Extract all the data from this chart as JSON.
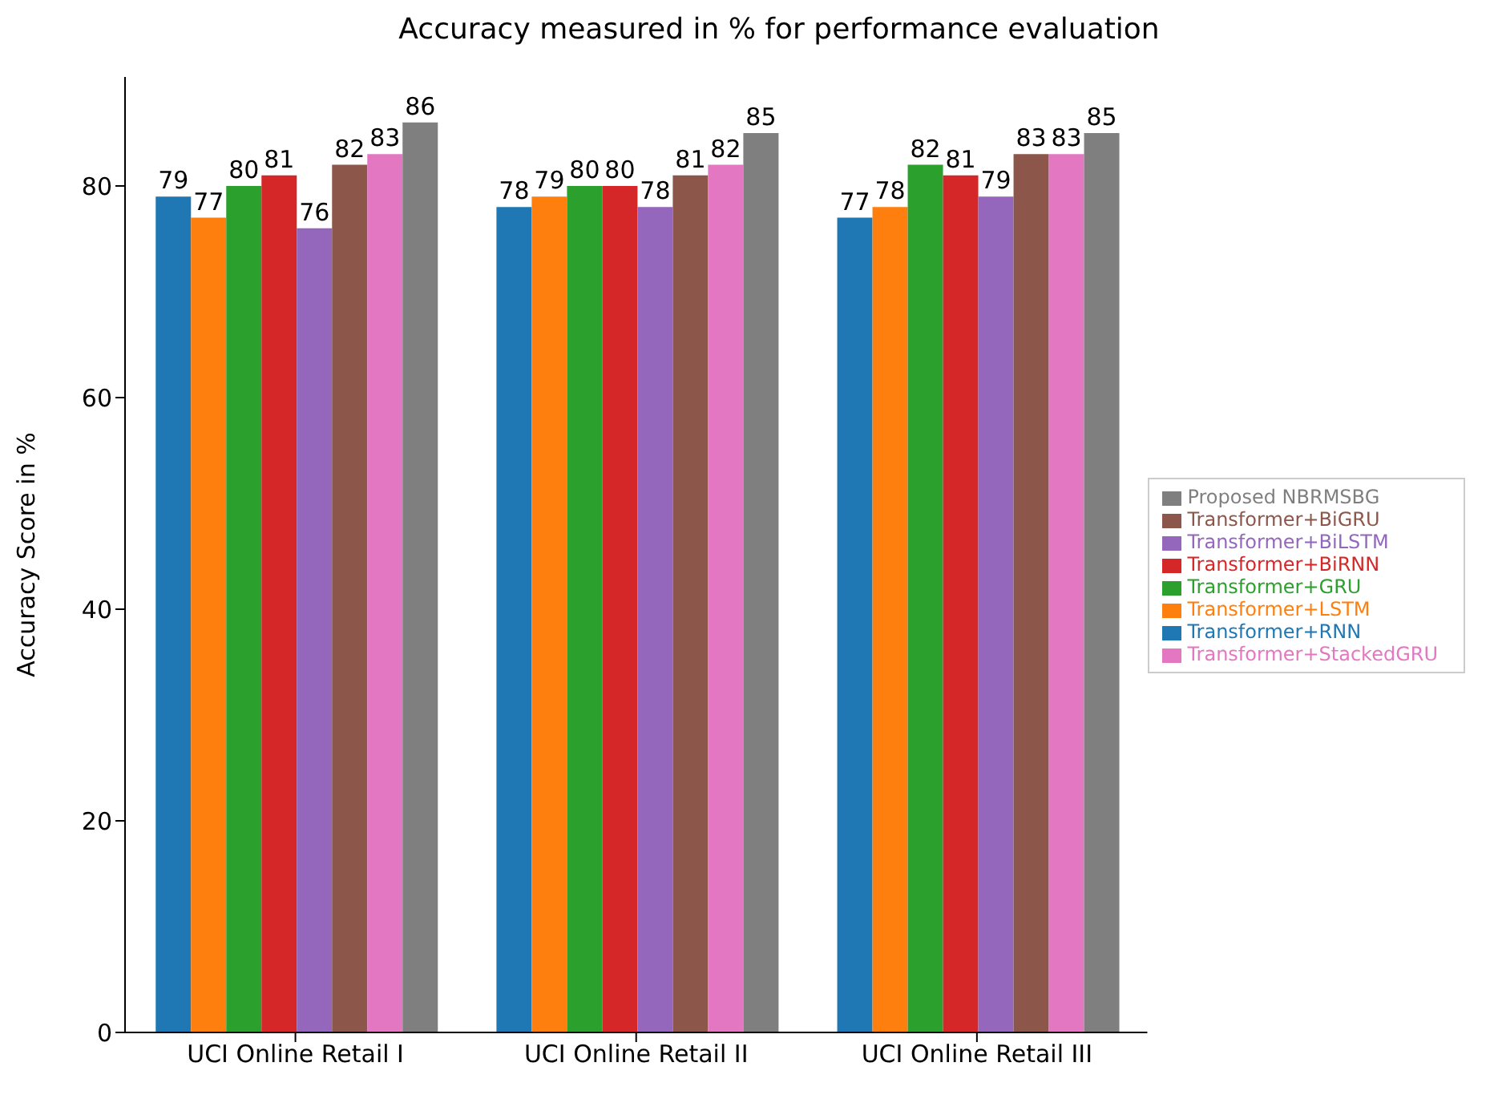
{
  "chart_data": {
    "type": "bar",
    "title": "Accuracy measured in % for performance evaluation",
    "ylabel": "Accuracy Score in %",
    "categories": [
      "UCI Online Retail I",
      "UCI Online Retail II",
      "UCI Online Retail III"
    ],
    "series": [
      {
        "name": "Transformer+RNN",
        "color": "#1f77b4",
        "values": [
          79,
          78,
          77
        ]
      },
      {
        "name": "Transformer+LSTM",
        "color": "#ff7f0e",
        "values": [
          77,
          79,
          78
        ]
      },
      {
        "name": "Transformer+GRU",
        "color": "#2ca02c",
        "values": [
          80,
          80,
          82
        ]
      },
      {
        "name": "Transformer+BiRNN",
        "color": "#d62728",
        "values": [
          81,
          80,
          81
        ]
      },
      {
        "name": "Transformer+BiLSTM",
        "color": "#9467bd",
        "values": [
          76,
          78,
          79
        ]
      },
      {
        "name": "Transformer+BiGRU",
        "color": "#8c564b",
        "values": [
          82,
          81,
          83
        ]
      },
      {
        "name": "Transformer+StackedGRU",
        "color": "#e377c2",
        "values": [
          83,
          82,
          83
        ]
      },
      {
        "name": "Proposed NBRMSBG",
        "color": "#7f7f7f",
        "values": [
          86,
          85,
          85
        ]
      }
    ],
    "ylim": [
      0,
      90.3
    ],
    "yticks": [
      0,
      20,
      40,
      60,
      80
    ],
    "data_labels": true,
    "legend": "right"
  }
}
